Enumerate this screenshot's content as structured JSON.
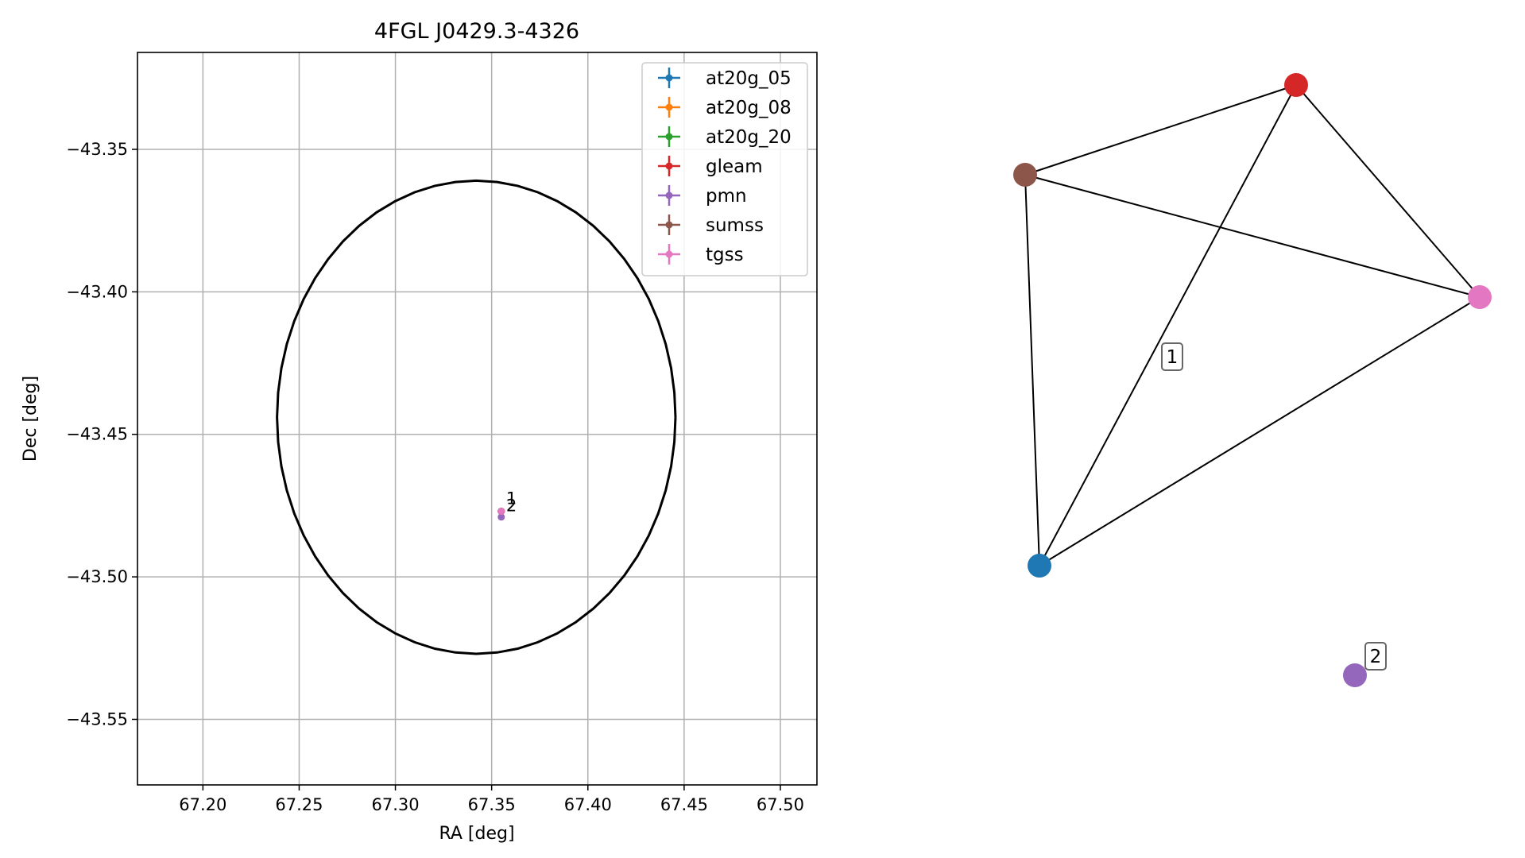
{
  "chart_data": [
    {
      "type": "scatter",
      "title": "4FGL J0429.3-4326",
      "xlabel": "RA [deg]",
      "ylabel": "Dec [deg]",
      "xlim": [
        67.166,
        67.519
      ],
      "ylim": [
        -43.573,
        -43.316
      ],
      "grid": true,
      "legend_position": "top-right",
      "x_ticks": [
        67.2,
        67.25,
        67.3,
        67.35,
        67.4,
        67.45,
        67.5
      ],
      "y_ticks": [
        -43.35,
        -43.4,
        -43.45,
        -43.5,
        -43.55
      ],
      "x_tick_labels": [
        "67.20",
        "67.25",
        "67.30",
        "67.35",
        "67.40",
        "67.45",
        "67.50"
      ],
      "y_tick_labels": [
        "−43.35",
        "−43.40",
        "−43.45",
        "−43.50",
        "−43.55"
      ],
      "series": [
        {
          "name": "at20g_05",
          "color": "#1f77b4",
          "points": [
            {
              "x": 67.355,
              "y": -43.477
            }
          ]
        },
        {
          "name": "at20g_08",
          "color": "#ff7f0e",
          "points": [
            {
              "x": 67.355,
              "y": -43.477
            }
          ]
        },
        {
          "name": "at20g_20",
          "color": "#2ca02c",
          "points": [
            {
              "x": 67.355,
              "y": -43.477
            }
          ]
        },
        {
          "name": "gleam",
          "color": "#d62728",
          "points": [
            {
              "x": 67.355,
              "y": -43.477
            }
          ]
        },
        {
          "name": "pmn",
          "color": "#9467bd",
          "points": [
            {
              "x": 67.355,
              "y": -43.479
            }
          ]
        },
        {
          "name": "sumss",
          "color": "#8c564b",
          "points": [
            {
              "x": 67.355,
              "y": -43.477
            }
          ]
        },
        {
          "name": "tgss",
          "color": "#e377c2",
          "points": [
            {
              "x": 67.355,
              "y": -43.477
            }
          ]
        }
      ],
      "annotations": [
        {
          "text": "1",
          "x": 67.3575,
          "y": -43.4745
        },
        {
          "text": "2",
          "x": 67.3575,
          "y": -43.477
        }
      ],
      "ellipse": {
        "center": [
          67.342,
          -43.444
        ],
        "semi_axis_ra": 0.1035,
        "semi_axis_dec": 0.083
      }
    },
    {
      "type": "network",
      "nodes": [
        {
          "id": "sumss",
          "color": "#8c564b"
        },
        {
          "id": "gleam",
          "color": "#d62728"
        },
        {
          "id": "tgss",
          "color": "#e377c2"
        },
        {
          "id": "at20g",
          "color": "#1f77b4"
        },
        {
          "id": "pmn",
          "color": "#9467bd"
        }
      ],
      "edges": [
        [
          "sumss",
          "gleam"
        ],
        [
          "sumss",
          "tgss"
        ],
        [
          "sumss",
          "at20g"
        ],
        [
          "gleam",
          "tgss"
        ],
        [
          "gleam",
          "at20g"
        ],
        [
          "tgss",
          "at20g"
        ]
      ],
      "labels": [
        "1",
        "2"
      ]
    }
  ]
}
